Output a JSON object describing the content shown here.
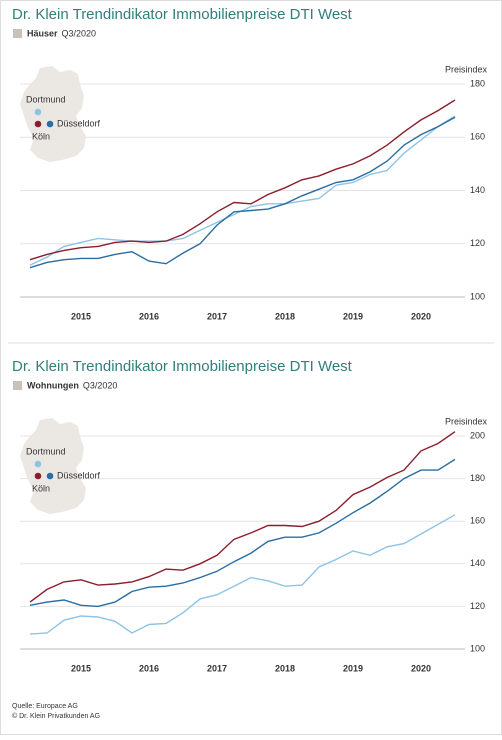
{
  "chart_data": [
    {
      "type": "line",
      "title": "Dr. Klein Trendindikator Immobilienpreise DTI West",
      "subtitle": "Häuser",
      "period": "Q3/2020",
      "ylabel": "Preisindex",
      "categories": [
        null,
        null,
        null,
        "2015",
        null,
        null,
        null,
        "2016",
        null,
        null,
        null,
        "2017",
        null,
        null,
        null,
        "2018",
        null,
        null,
        null,
        "2019",
        null,
        null,
        null,
        "2020",
        null,
        null
      ],
      "ylim": [
        100,
        180
      ],
      "yticks": [
        100,
        120,
        140,
        160,
        180
      ],
      "grid": true,
      "series": [
        {
          "name": "Köln",
          "color": "#8b1e2d",
          "values": [
            114,
            116,
            117.5,
            118.5,
            119,
            120.5,
            121,
            120.5,
            121,
            123.5,
            127.5,
            132,
            135.5,
            135,
            138.5,
            141,
            144,
            145.5,
            148,
            150,
            153,
            157,
            162,
            166.5,
            170,
            174
          ]
        },
        {
          "name": "Düsseldorf",
          "color": "#2b6ca3",
          "values": [
            111,
            113,
            114,
            114.5,
            114.5,
            116,
            117,
            113.5,
            112.5,
            116.5,
            120,
            127,
            132,
            132.5,
            133,
            135,
            138,
            140.5,
            143,
            144,
            147,
            151,
            157,
            161,
            164,
            167.5
          ]
        },
        {
          "name": "Dortmund",
          "color": "#8ec3e6",
          "values": [
            112,
            115,
            119,
            120.5,
            122,
            121.5,
            121,
            121,
            121,
            122,
            125,
            128,
            131,
            134,
            135,
            135,
            136,
            137,
            142,
            143,
            146,
            147.5,
            154,
            159,
            164,
            168
          ]
        }
      ]
    },
    {
      "type": "line",
      "title": "Dr. Klein Trendindikator Immobilienpreise DTI West",
      "subtitle": "Wohnungen",
      "period": "Q3/2020",
      "ylabel": "Preisindex",
      "categories": [
        null,
        null,
        null,
        "2015",
        null,
        null,
        null,
        "2016",
        null,
        null,
        null,
        "2017",
        null,
        null,
        null,
        "2018",
        null,
        null,
        null,
        "2019",
        null,
        null,
        null,
        "2020",
        null,
        null
      ],
      "ylim": [
        100,
        200
      ],
      "yticks": [
        100,
        120,
        140,
        160,
        180,
        200
      ],
      "grid": true,
      "series": [
        {
          "name": "Köln",
          "color": "#8b1e2d",
          "values": [
            122,
            128,
            131.5,
            132.5,
            130,
            130.5,
            131.5,
            134,
            137.5,
            137,
            140,
            144,
            151.5,
            154.5,
            158,
            158,
            157.5,
            160,
            165,
            172.5,
            176,
            180.5,
            184,
            193,
            196.5,
            202
          ]
        },
        {
          "name": "Düsseldorf",
          "color": "#2b6ca3",
          "values": [
            120.5,
            122,
            123,
            120.5,
            120,
            122,
            127,
            129,
            129.5,
            131,
            133.5,
            136.5,
            141,
            145,
            150.5,
            152.5,
            152.5,
            154.5,
            159,
            164,
            168.5,
            174,
            180,
            184,
            184,
            189
          ]
        },
        {
          "name": "Dortmund",
          "color": "#8ec3e6",
          "values": [
            107,
            107.5,
            113.5,
            115.5,
            115,
            113,
            107.5,
            111.5,
            112,
            117,
            123.5,
            125.5,
            129.5,
            133.5,
            132,
            129.5,
            130,
            138.5,
            142,
            146,
            144,
            148,
            149.5,
            154,
            158.5,
            163
          ]
        }
      ]
    }
  ],
  "footer": {
    "source": "Quelle: Europace AG",
    "copyright": "© Dr. Klein Privatkunden AG"
  }
}
